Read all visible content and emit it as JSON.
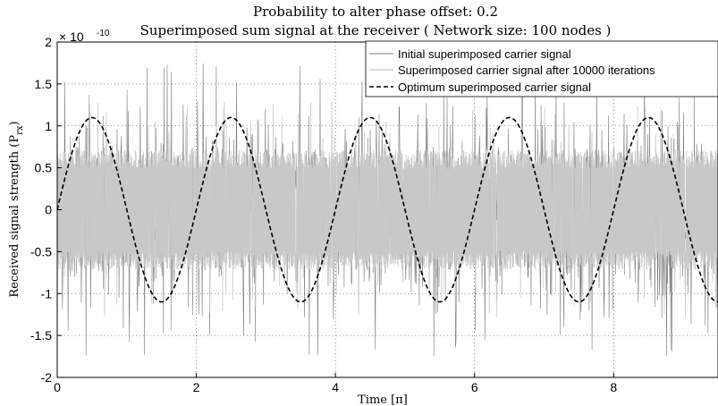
{
  "chart_data": {
    "type": "line",
    "title": "Probability to alter phase offset: 0.2",
    "subtitle": "Superimposed sum signal at the receiver ( Network size: 100 nodes )",
    "xlabel": "Time [π]",
    "ylabel": "Received signal strength (P",
    "ylabel_sub": "rx",
    "ylabel_close": ")",
    "xlim": [
      0,
      9.5
    ],
    "ylim": [
      -2,
      2
    ],
    "y_multiplier": "× 10",
    "y_exponent": "-10",
    "xticks": [
      0,
      2,
      4,
      6,
      8
    ],
    "yticks": [
      -2,
      -1.5,
      -1,
      -0.5,
      0,
      0.5,
      1,
      1.5,
      2
    ],
    "grid": true,
    "legend_position": "top-right",
    "series": [
      {
        "name": "Initial superimposed carrier signal",
        "style": "solid",
        "color": "#7a7a7a",
        "description": "noisy random signal",
        "typical_amplitude": 0.9,
        "peak_amplitude": 1.75
      },
      {
        "name": "Superimposed carrier signal after 10000 iterations",
        "style": "solid",
        "color": "#c8c8c8",
        "description": "dense band",
        "band_amplitude": 0.65,
        "peak_amplitude": 1.3
      },
      {
        "name": "Optimum superimposed carrier signal",
        "style": "dashed",
        "color": "#000000",
        "amplitude": 1.1,
        "period": 2,
        "x": [
          0,
          0.5,
          1,
          1.5,
          2,
          2.5,
          3,
          3.5,
          4,
          4.5,
          5,
          5.5,
          6,
          6.5,
          7,
          7.5,
          8,
          8.5,
          9,
          9.5
        ],
        "y": [
          0,
          1.1,
          0,
          -1.1,
          0,
          1.1,
          0,
          -1.1,
          0,
          1.1,
          0,
          -1.1,
          0,
          1.1,
          0,
          -1.1,
          0,
          1.1,
          0,
          -1.1
        ]
      }
    ]
  }
}
